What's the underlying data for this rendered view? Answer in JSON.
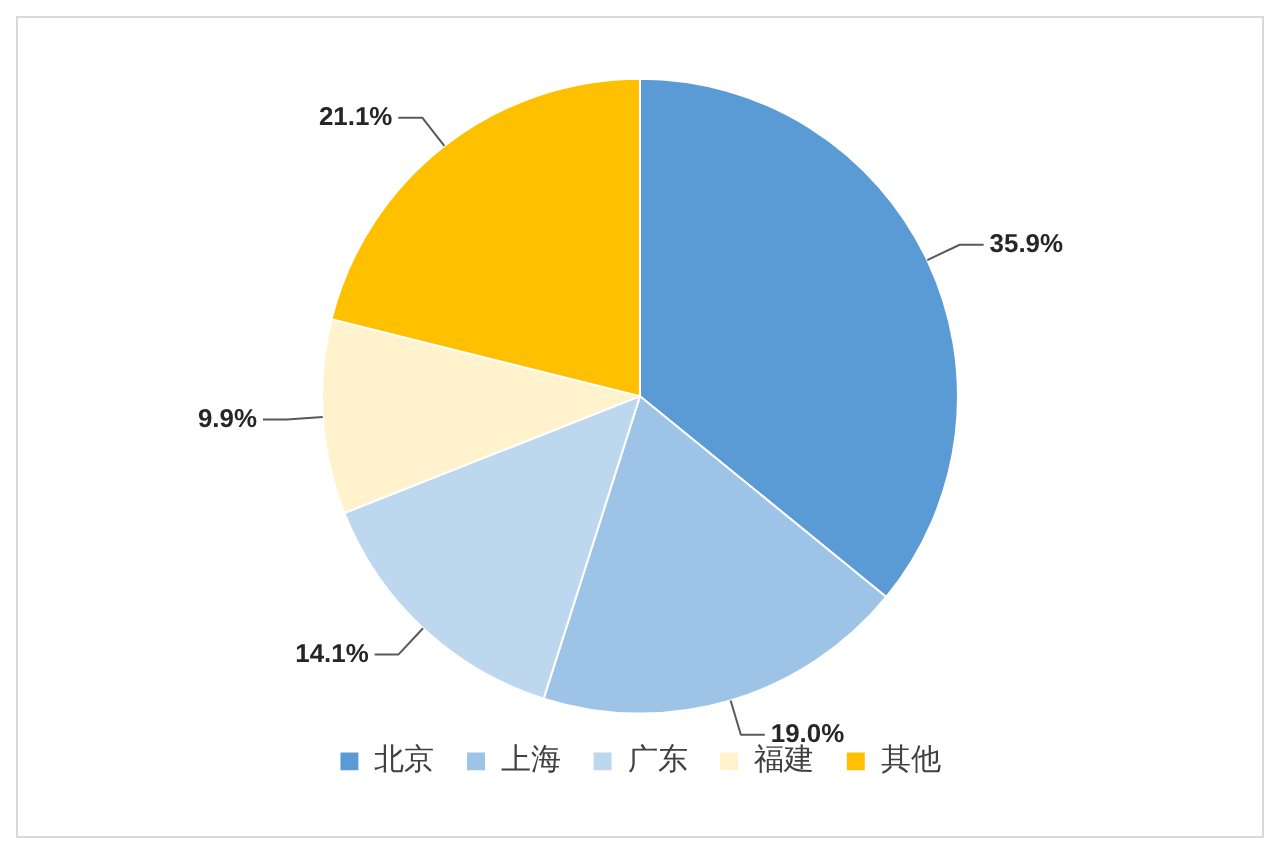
{
  "chart_data": {
    "type": "pie",
    "categories": [
      "北京",
      "上海",
      "广东",
      "福建",
      "其他"
    ],
    "values": [
      35.9,
      19.0,
      14.1,
      9.9,
      21.1
    ],
    "value_labels": [
      "35.9%",
      "19.0%",
      "14.1%",
      "9.9%",
      "21.1%"
    ],
    "colors": [
      "#5b9bd5",
      "#9dc3e6",
      "#bdd7ee",
      "#fff2cc",
      "#ffc000"
    ],
    "legend": "bottom"
  }
}
